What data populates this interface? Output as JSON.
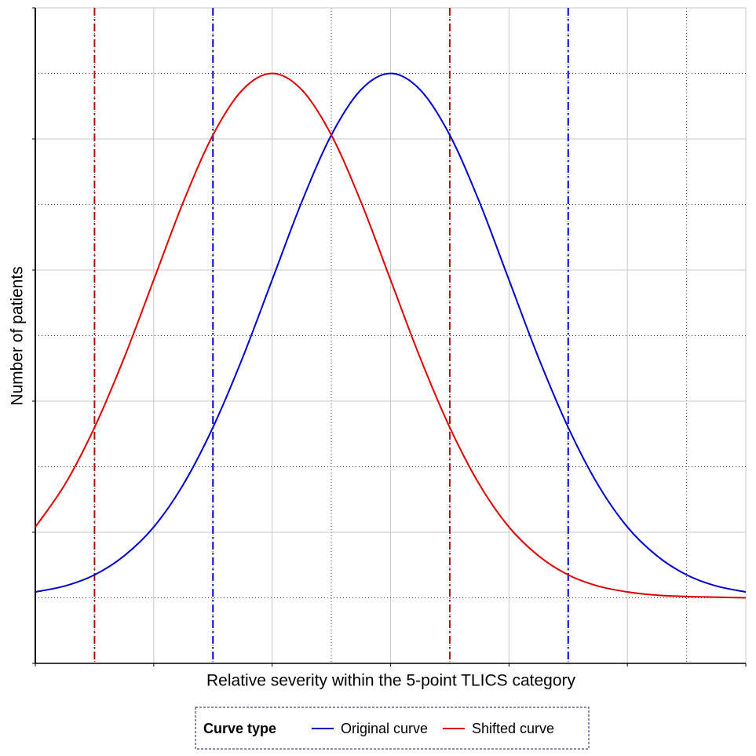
{
  "chart_data": {
    "type": "line",
    "x_label": "Relative severity within the 5-point TLICS category",
    "y_label": "Number of patients",
    "legend_title": "Curve type",
    "x": [
      0,
      0.5,
      1,
      1.5,
      2,
      2.5,
      3,
      3.5,
      4,
      4.5,
      5,
      5.5,
      6,
      6.5,
      7,
      7.5,
      8,
      8.5,
      9,
      9.5,
      10,
      10.5,
      11,
      11.5,
      12
    ],
    "series": [
      {
        "name": "Original curve",
        "color": "#0000cc",
        "values": [
          1.09,
          1.18,
          1.35,
          1.64,
          2.08,
          2.73,
          3.6,
          4.66,
          5.85,
          7.04,
          8.06,
          8.75,
          9,
          8.75,
          8.06,
          7.04,
          5.85,
          4.66,
          3.6,
          2.73,
          2.08,
          1.64,
          1.35,
          1.18,
          1.09
        ]
      },
      {
        "name": "Shifted curve",
        "color": "#dd0000",
        "values": [
          2.08,
          2.73,
          3.6,
          4.66,
          5.85,
          7.04,
          8.06,
          8.75,
          9,
          8.75,
          8.06,
          7.04,
          5.85,
          4.66,
          3.6,
          2.73,
          2.08,
          1.64,
          1.35,
          1.18,
          1.09,
          1.04,
          1.02,
          1.01,
          1.0
        ]
      }
    ],
    "reference_lines": [
      {
        "x": 1,
        "color": "#aa1111"
      },
      {
        "x": 3,
        "color": "#0000cc"
      },
      {
        "x": 7,
        "color": "#aa1111"
      },
      {
        "x": 9,
        "color": "#0000cc"
      }
    ],
    "xlim": [
      0,
      12
    ],
    "ylim": [
      0,
      10
    ],
    "xticks": [
      0,
      1,
      2,
      3,
      4,
      5,
      6,
      7,
      8,
      9,
      10,
      11,
      12
    ],
    "yticks": [
      0,
      1,
      2,
      3,
      4,
      5,
      6,
      7,
      8,
      9,
      10
    ],
    "tick_labels": false,
    "grid": true
  }
}
